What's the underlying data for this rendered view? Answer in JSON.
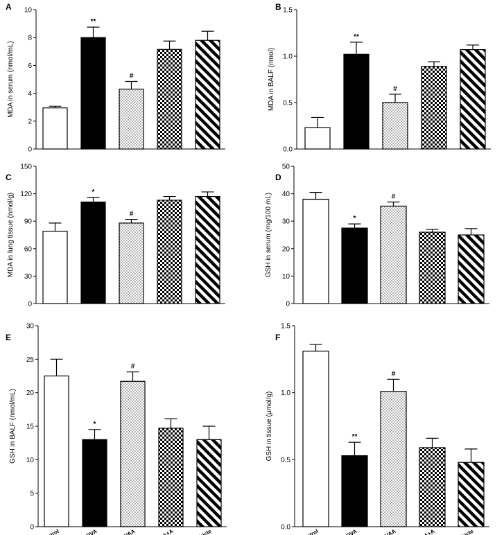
{
  "categories": [
    "Saline control",
    "OVA",
    "OVAA",
    "OVAA+A",
    "OVA+Vehicle"
  ],
  "patterns": [
    "open",
    "solid",
    "dotted",
    "checkered",
    "diagonal-stripes"
  ],
  "colors": {
    "bar_stroke": "#000000",
    "solid_fill": "#000000",
    "open_fill": "#ffffff"
  },
  "chart_data": [
    {
      "type": "bar",
      "panel": "A",
      "ylabel": "MDA in serum (nmol/mL)",
      "ylim": [
        0,
        10
      ],
      "yticks": [
        0,
        2,
        4,
        6,
        8,
        10
      ],
      "tick_format": "int",
      "categories": [
        "Saline control",
        "OVA",
        "OVAA",
        "OVAA+A",
        "OVA+Vehicle"
      ],
      "values": [
        2.95,
        8.0,
        4.3,
        7.15,
        7.8
      ],
      "errors": [
        0.12,
        0.75,
        0.55,
        0.6,
        0.65
      ],
      "significance": [
        "",
        "**",
        "#",
        "",
        ""
      ],
      "show_category_labels": false
    },
    {
      "type": "bar",
      "panel": "B",
      "ylabel": "MDA in BALF (nmol)",
      "ylim": [
        0,
        1.5
      ],
      "yticks": [
        0,
        0.5,
        1.0,
        1.5
      ],
      "tick_format": "one_decimal",
      "categories": [
        "Saline control",
        "OVA",
        "OVAA",
        "OVAA+A",
        "OVA+Vehicle"
      ],
      "values": [
        0.23,
        1.02,
        0.5,
        0.89,
        1.07
      ],
      "errors": [
        0.11,
        0.13,
        0.09,
        0.05,
        0.05
      ],
      "significance": [
        "",
        "**",
        "#",
        "",
        ""
      ],
      "show_category_labels": false
    },
    {
      "type": "bar",
      "panel": "C",
      "ylabel": "MDA in lung tissue (nmol/g)",
      "ylim": [
        0,
        150
      ],
      "yticks": [
        0,
        30,
        60,
        90,
        120,
        150
      ],
      "tick_format": "int",
      "categories": [
        "Saline control",
        "OVA",
        "OVAA",
        "OVAA+A",
        "OVA+Vehicle"
      ],
      "values": [
        79,
        111,
        88,
        113,
        117
      ],
      "errors": [
        9,
        5,
        4,
        4,
        5
      ],
      "significance": [
        "",
        "*",
        "#",
        "",
        ""
      ],
      "show_category_labels": false
    },
    {
      "type": "bar",
      "panel": "D",
      "ylabel": "GSH in serum (mg/100 mL)",
      "ylim": [
        0,
        50
      ],
      "yticks": [
        0,
        10,
        20,
        30,
        40,
        50
      ],
      "tick_format": "int",
      "categories": [
        "Saline control",
        "OVA",
        "OVAA",
        "OVAA+A",
        "OVA+Vehicle"
      ],
      "values": [
        38,
        27.5,
        35.5,
        26,
        25
      ],
      "errors": [
        2.5,
        1.5,
        1.5,
        1.0,
        2.3
      ],
      "significance": [
        "",
        "*",
        "#",
        "",
        ""
      ],
      "show_category_labels": false
    },
    {
      "type": "bar",
      "panel": "E",
      "ylabel": "GSH in BALF (nmol/mL)",
      "ylim": [
        0,
        30
      ],
      "yticks": [
        0,
        5,
        10,
        15,
        20,
        25,
        30
      ],
      "tick_format": "int",
      "categories": [
        "Saline control",
        "OVA",
        "OVAA",
        "OVAA+A",
        "OVA+Vehicle"
      ],
      "values": [
        22.5,
        13,
        21.7,
        14.7,
        13
      ],
      "errors": [
        2.5,
        1.5,
        1.4,
        1.4,
        2.0
      ],
      "significance": [
        "",
        "*",
        "#",
        "",
        ""
      ],
      "show_category_labels": true
    },
    {
      "type": "bar",
      "panel": "F",
      "ylabel": "GSH in tissue (μmol/g)",
      "ylim": [
        0,
        1.5
      ],
      "yticks": [
        0,
        0.5,
        1.0,
        1.5
      ],
      "tick_format": "one_decimal",
      "categories": [
        "Saline control",
        "OVA",
        "OVAA",
        "OVAA+A",
        "OVA+Vehicle"
      ],
      "values": [
        1.31,
        0.53,
        1.01,
        0.59,
        0.48
      ],
      "errors": [
        0.05,
        0.1,
        0.09,
        0.07,
        0.1
      ],
      "significance": [
        "",
        "**",
        "#",
        "",
        ""
      ],
      "show_category_labels": true
    }
  ]
}
